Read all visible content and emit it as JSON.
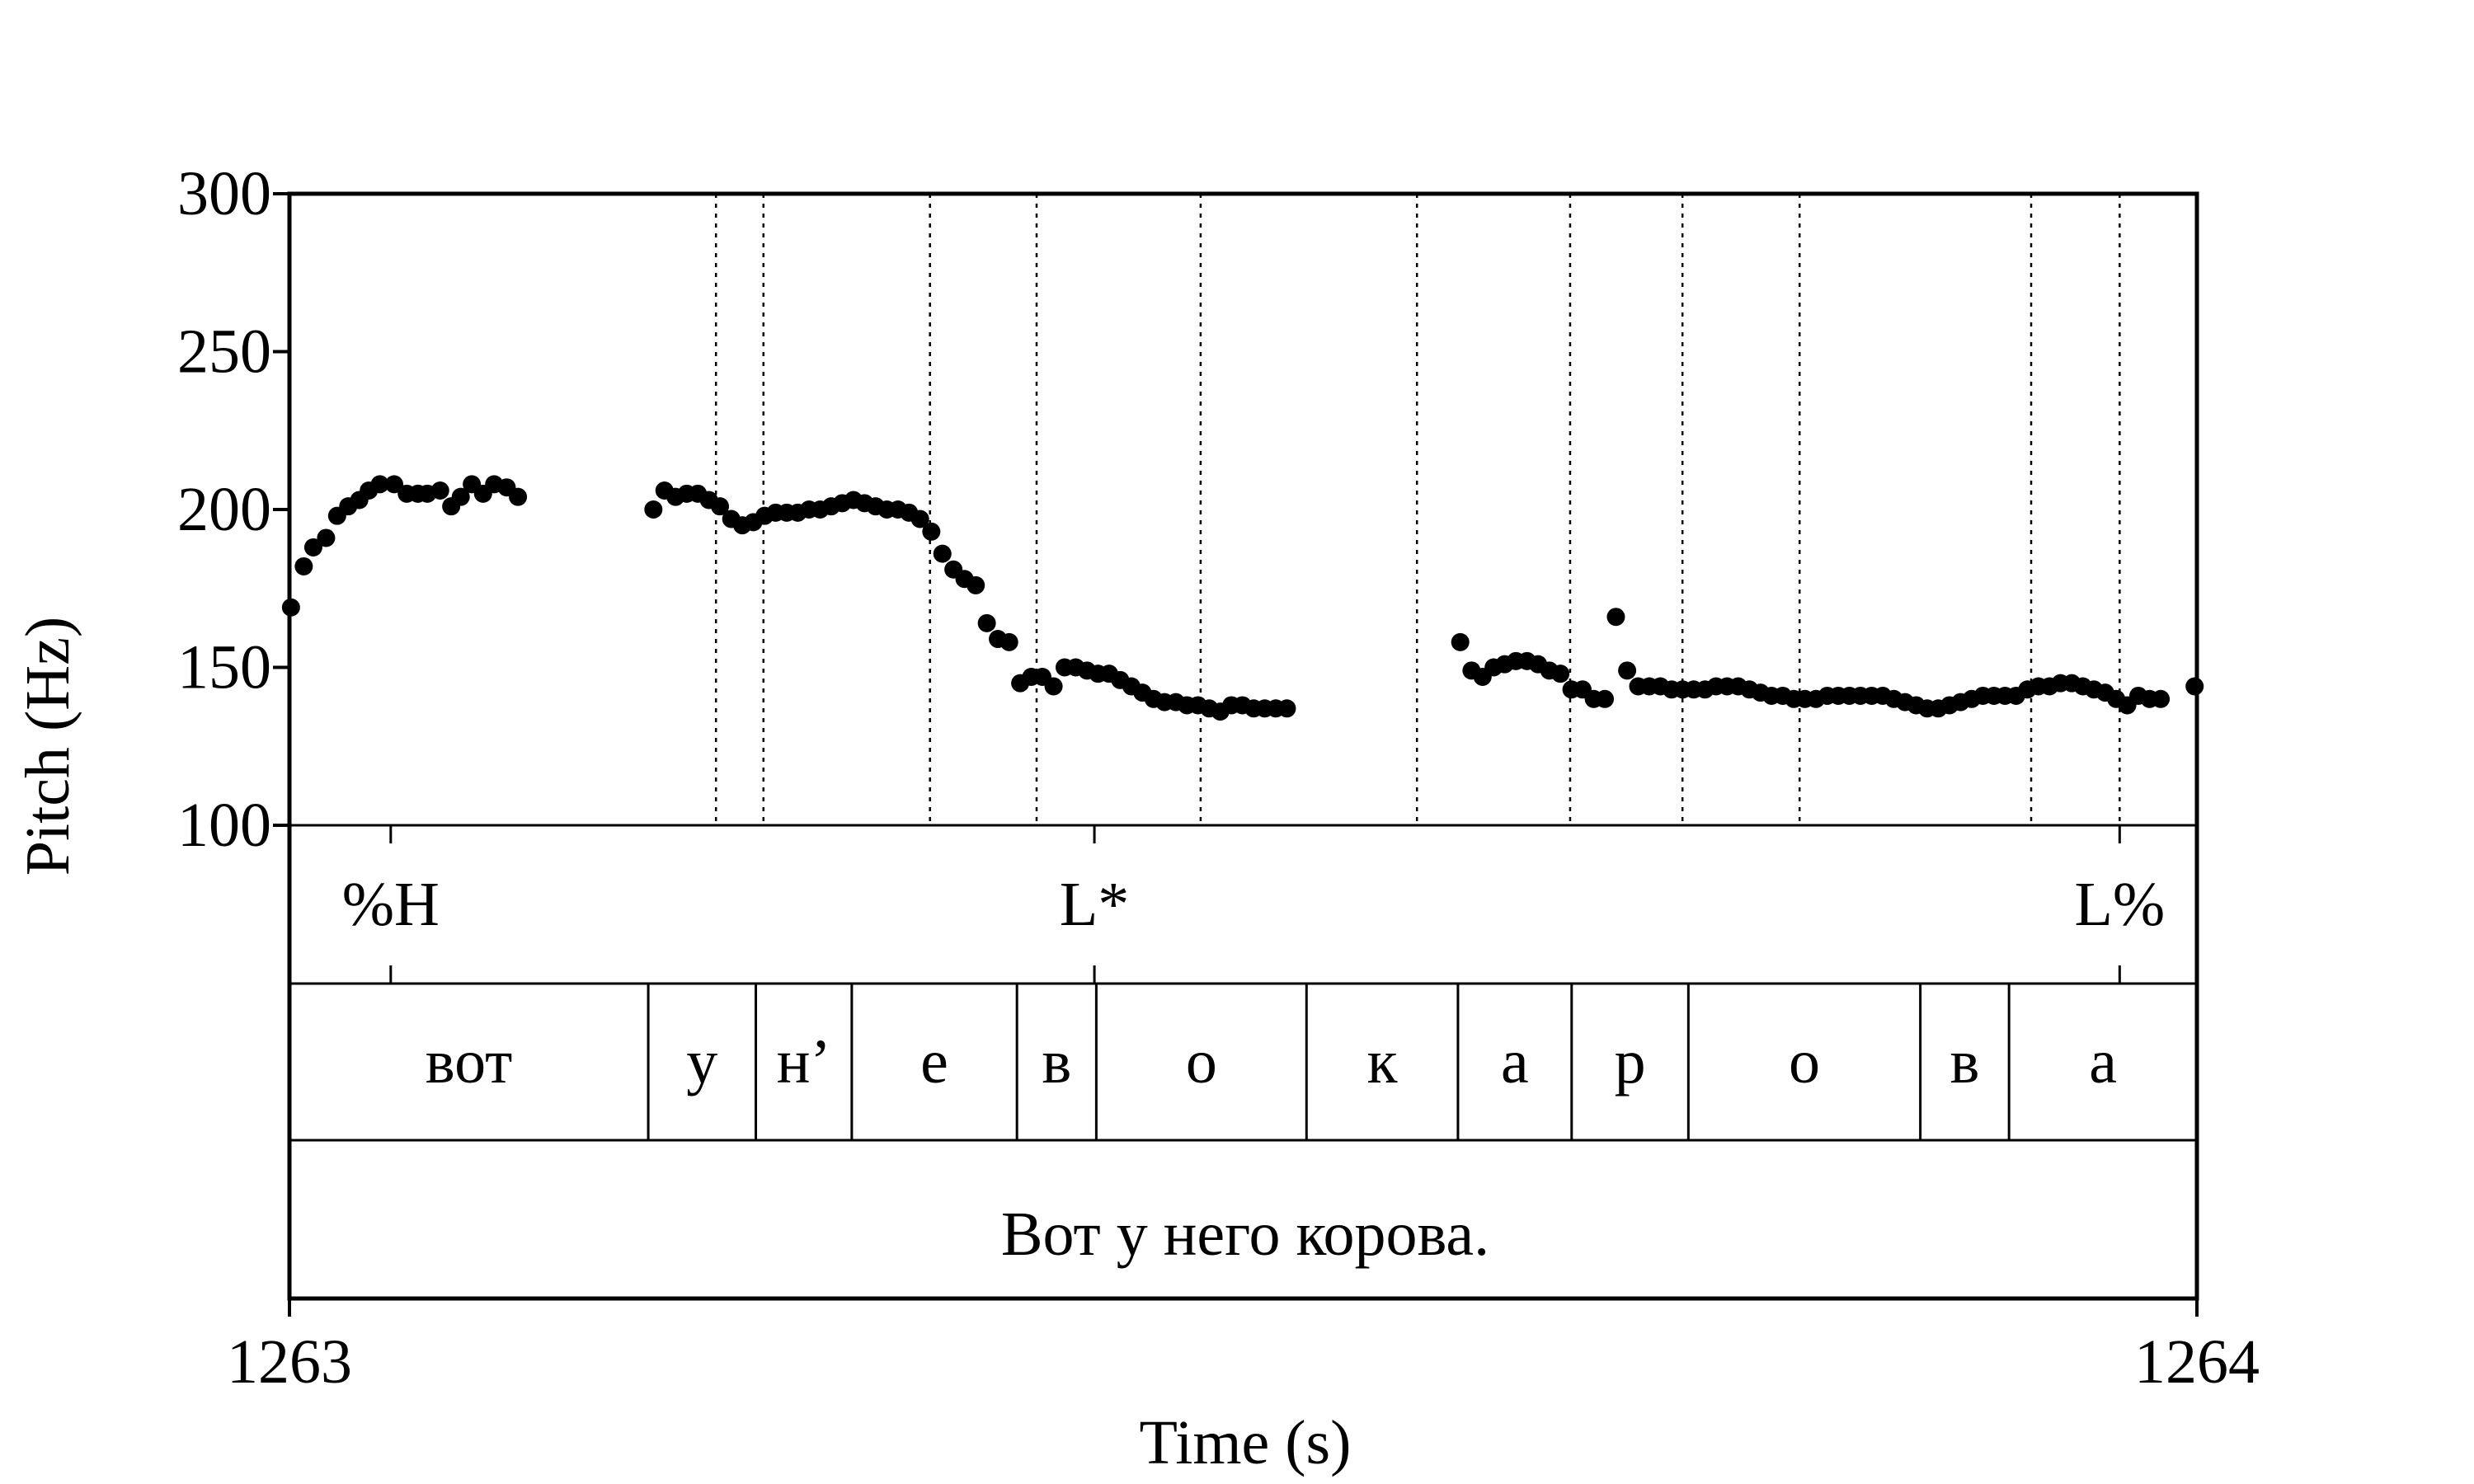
{
  "chart_data": {
    "type": "scatter",
    "xlabel": "Time (s)",
    "ylabel": "Pitch (Hz)",
    "xlim": [
      1263,
      1264
    ],
    "ylim": [
      100,
      300
    ],
    "x_ticks": [
      "1263",
      "1264"
    ],
    "y_ticks": [
      "100",
      "150",
      "200",
      "250",
      "300"
    ],
    "grid": false,
    "boundaries": [
      1263.2236,
      1263.2485,
      1263.3358,
      1263.3917,
      1263.4777,
      1263.5911,
      1263.6714,
      1263.7303,
      1263.7917,
      1263.9131,
      1263.9595
    ],
    "tones": [
      {
        "label": "%H",
        "time": 1263.0531
      },
      {
        "label": "L*",
        "time": 1263.422
      },
      {
        "label": "L%",
        "time": 1263.9595
      }
    ],
    "segments": [
      {
        "label": "вот",
        "start": 1263.0,
        "end": 1263.1881
      },
      {
        "label": "у",
        "start": 1263.1881,
        "end": 1263.2445
      },
      {
        "label": "н’",
        "start": 1263.2445,
        "end": 1263.2948
      },
      {
        "label": "е",
        "start": 1263.2948,
        "end": 1263.3814
      },
      {
        "label": "в",
        "start": 1263.3814,
        "end": 1263.423
      },
      {
        "label": "о",
        "start": 1263.423,
        "end": 1263.5332
      },
      {
        "label": "к",
        "start": 1263.5332,
        "end": 1263.6126
      },
      {
        "label": "а",
        "start": 1263.6126,
        "end": 1263.6722
      },
      {
        "label": "р",
        "start": 1263.6722,
        "end": 1263.7334
      },
      {
        "label": "о",
        "start": 1263.7334,
        "end": 1263.855
      },
      {
        "label": "в",
        "start": 1263.855,
        "end": 1263.9015
      },
      {
        "label": "а",
        "start": 1263.9015,
        "end": 1264.0
      }
    ],
    "sentence": "Вот у него корова.",
    "series": [
      {
        "points": [
          [
            1263.0008,
            169
          ],
          [
            1263.0075,
            182
          ],
          [
            1263.0125,
            188
          ],
          [
            1263.0192,
            191
          ],
          [
            1263.025,
            198
          ],
          [
            1263.0308,
            201
          ],
          [
            1263.0366,
            203
          ],
          [
            1263.0416,
            206
          ],
          [
            1263.0474,
            208
          ],
          [
            1263.0549,
            208
          ],
          [
            1263.0615,
            205
          ],
          [
            1263.0673,
            205
          ],
          [
            1263.0723,
            205
          ],
          [
            1263.079,
            206
          ],
          [
            1263.0848,
            201
          ],
          [
            1263.0898,
            204
          ],
          [
            1263.0956,
            208
          ],
          [
            1263.1015,
            205
          ],
          [
            1263.1073,
            208
          ],
          [
            1263.1139,
            207
          ],
          [
            1263.1198,
            204
          ],
          [
            1263.1908,
            200
          ],
          [
            1263.1966,
            206
          ],
          [
            1263.2024,
            204
          ],
          [
            1263.2083,
            205
          ],
          [
            1263.2141,
            205
          ],
          [
            1263.2199,
            203
          ],
          [
            1263.2257,
            201
          ],
          [
            1263.2316,
            197
          ],
          [
            1263.2374,
            195
          ],
          [
            1263.2432,
            196
          ],
          [
            1263.2491,
            198
          ],
          [
            1263.2549,
            199
          ],
          [
            1263.2607,
            199
          ],
          [
            1263.2665,
            199
          ],
          [
            1263.2724,
            200
          ],
          [
            1263.2782,
            200
          ],
          [
            1263.284,
            201
          ],
          [
            1263.2898,
            202
          ],
          [
            1263.2957,
            203
          ],
          [
            1263.3015,
            202
          ],
          [
            1263.3073,
            201
          ],
          [
            1263.3132,
            200
          ],
          [
            1263.319,
            200
          ],
          [
            1263.3248,
            199
          ],
          [
            1263.3306,
            197
          ],
          [
            1263.3365,
            193
          ],
          [
            1263.3423,
            186
          ],
          [
            1263.3481,
            181
          ],
          [
            1263.3539,
            178
          ],
          [
            1263.3598,
            176
          ],
          [
            1263.3656,
            164
          ],
          [
            1263.3714,
            159
          ],
          [
            1263.3773,
            158
          ],
          [
            1263.3831,
            145
          ],
          [
            1263.3889,
            147
          ],
          [
            1263.3947,
            147
          ],
          [
            1263.4006,
            144
          ],
          [
            1263.4064,
            150
          ],
          [
            1263.4122,
            150
          ],
          [
            1263.4181,
            149
          ],
          [
            1263.4239,
            148
          ],
          [
            1263.4297,
            148
          ],
          [
            1263.4355,
            146
          ],
          [
            1263.4414,
            144
          ],
          [
            1263.4472,
            142
          ],
          [
            1263.453,
            140
          ],
          [
            1263.4588,
            139
          ],
          [
            1263.4647,
            139
          ],
          [
            1263.4705,
            138
          ],
          [
            1263.4763,
            138
          ],
          [
            1263.4822,
            137
          ],
          [
            1263.488,
            136
          ],
          [
            1263.4938,
            138
          ],
          [
            1263.4996,
            138
          ],
          [
            1263.5055,
            137
          ],
          [
            1263.5113,
            137
          ],
          [
            1263.5171,
            137
          ],
          [
            1263.5229,
            137
          ],
          [
            1263.6138,
            158
          ],
          [
            1263.6197,
            149
          ],
          [
            1263.6255,
            147
          ],
          [
            1263.6313,
            150
          ],
          [
            1263.6371,
            151
          ],
          [
            1263.643,
            152
          ],
          [
            1263.6488,
            152
          ],
          [
            1263.6546,
            151
          ],
          [
            1263.6605,
            149
          ],
          [
            1263.6663,
            148
          ],
          [
            1263.6721,
            143
          ],
          [
            1263.6779,
            143
          ],
          [
            1263.6838,
            140
          ],
          [
            1263.6896,
            140
          ],
          [
            1263.6954,
            166
          ],
          [
            1263.7013,
            149
          ],
          [
            1263.7071,
            144
          ],
          [
            1263.7129,
            144
          ],
          [
            1263.7187,
            144
          ],
          [
            1263.7246,
            143
          ],
          [
            1263.7304,
            143
          ],
          [
            1263.7362,
            143
          ],
          [
            1263.7421,
            143
          ],
          [
            1263.7479,
            144
          ],
          [
            1263.7537,
            144
          ],
          [
            1263.7595,
            144
          ],
          [
            1263.7654,
            143
          ],
          [
            1263.7712,
            142
          ],
          [
            1263.777,
            141
          ],
          [
            1263.7829,
            141
          ],
          [
            1263.7887,
            140
          ],
          [
            1263.7945,
            140
          ],
          [
            1263.8003,
            140
          ],
          [
            1263.8062,
            141
          ],
          [
            1263.812,
            141
          ],
          [
            1263.8178,
            141
          ],
          [
            1263.8236,
            141
          ],
          [
            1263.8295,
            141
          ],
          [
            1263.8353,
            141
          ],
          [
            1263.8411,
            140
          ],
          [
            1263.847,
            139
          ],
          [
            1263.8528,
            138
          ],
          [
            1263.8586,
            137
          ],
          [
            1263.8644,
            137
          ],
          [
            1263.8703,
            138
          ],
          [
            1263.8761,
            139
          ],
          [
            1263.8819,
            140
          ],
          [
            1263.8878,
            141
          ],
          [
            1263.8936,
            141
          ],
          [
            1263.8994,
            141
          ],
          [
            1263.9052,
            141
          ],
          [
            1263.9111,
            143
          ],
          [
            1263.9169,
            144
          ],
          [
            1263.9227,
            144
          ],
          [
            1263.9285,
            145
          ],
          [
            1263.9344,
            145
          ],
          [
            1263.9402,
            144
          ],
          [
            1263.946,
            143
          ],
          [
            1263.9519,
            142
          ],
          [
            1263.9577,
            140
          ],
          [
            1263.9635,
            138
          ],
          [
            1263.9693,
            141
          ],
          [
            1263.9752,
            140
          ],
          [
            1263.981,
            140
          ],
          [
            1263.9988,
            144
          ]
        ]
      }
    ]
  }
}
